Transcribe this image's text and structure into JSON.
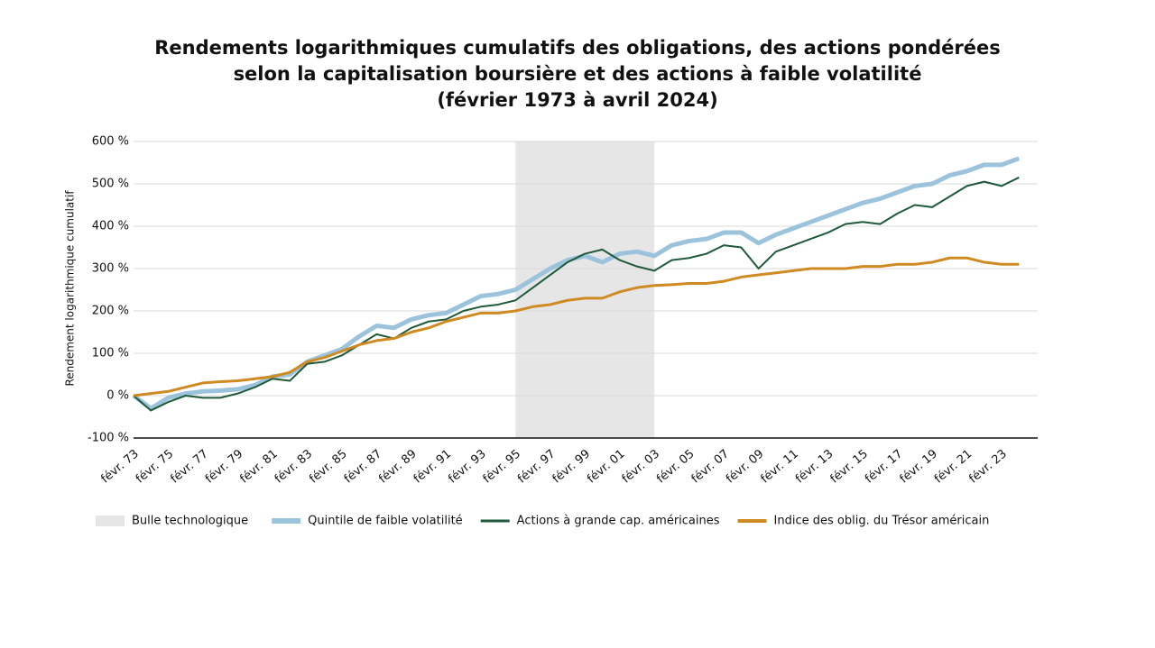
{
  "chart_data": {
    "type": "line",
    "title": [
      "Rendements logarithmiques cumulatifs des obligations, des actions pondérées",
      "selon la capitalisation boursière et des actions à faible volatilité",
      "(février 1973 à avril 2024)"
    ],
    "y_label": "Rendement logarithmique cumulatif",
    "categories": [
      "févr. 73",
      null,
      "févr. 75",
      null,
      "févr. 77",
      null,
      "févr. 79",
      null,
      "févr. 81",
      null,
      "févr. 83",
      null,
      "févr. 85",
      null,
      "févr. 87",
      null,
      "févr. 89",
      null,
      "févr. 91",
      null,
      "févr. 93",
      null,
      "févr. 95",
      null,
      "févr. 97",
      null,
      "févr. 99",
      null,
      "févr. 01",
      null,
      "févr. 03",
      null,
      "févr. 05",
      null,
      "févr. 07",
      null,
      "févr. 09",
      null,
      "févr. 11",
      null,
      "févr. 13",
      null,
      "févr. 15",
      null,
      "févr. 17",
      null,
      "févr. 19",
      null,
      "févr. 21",
      null,
      "févr. 23",
      null
    ],
    "bands": [
      {
        "name": "Bulle technologique",
        "color": "#e6e6e6",
        "start": "févr. 95",
        "end": "févr. 03"
      }
    ],
    "series": [
      {
        "name": "Quintile de faible volatilité",
        "color": "#9cc3dc",
        "width": 5,
        "values": [
          0,
          -30,
          -5,
          5,
          10,
          12,
          15,
          25,
          45,
          50,
          80,
          95,
          110,
          140,
          165,
          160,
          180,
          190,
          195,
          215,
          235,
          240,
          250,
          275,
          300,
          320,
          330,
          315,
          335,
          340,
          330,
          355,
          365,
          370,
          385,
          385,
          360,
          380,
          395,
          410,
          425,
          440,
          455,
          465,
          480,
          495,
          500,
          520,
          530,
          545,
          545,
          560
        ]
      },
      {
        "name": "Actions à grande cap. américaines",
        "color": "#1f5a3a",
        "width": 2,
        "values": [
          0,
          -35,
          -15,
          0,
          -5,
          -5,
          5,
          20,
          40,
          35,
          75,
          80,
          95,
          120,
          145,
          135,
          160,
          175,
          180,
          200,
          210,
          215,
          225,
          255,
          285,
          315,
          335,
          345,
          320,
          305,
          295,
          320,
          325,
          335,
          355,
          350,
          300,
          340,
          355,
          370,
          385,
          405,
          410,
          405,
          430,
          450,
          445,
          470,
          495,
          505,
          495,
          515
        ]
      },
      {
        "name": "Indice des oblig. du Trésor américain",
        "color": "#d08a22",
        "width": 3,
        "values": [
          0,
          5,
          10,
          20,
          30,
          33,
          35,
          40,
          45,
          55,
          80,
          90,
          105,
          120,
          130,
          135,
          150,
          160,
          175,
          185,
          195,
          195,
          200,
          210,
          215,
          225,
          230,
          230,
          245,
          255,
          260,
          262,
          265,
          265,
          270,
          280,
          285,
          290,
          295,
          300,
          300,
          300,
          305,
          305,
          310,
          310,
          315,
          325,
          325,
          315,
          310,
          310
        ]
      }
    ],
    "ylim": [
      -100,
      600
    ],
    "yticks": [
      {
        "value": -100,
        "label": "-100 %"
      },
      {
        "value": 0,
        "label": "0 %"
      },
      {
        "value": 100,
        "label": "100 %"
      },
      {
        "value": 200,
        "label": "200 %"
      },
      {
        "value": 300,
        "label": "300 %"
      },
      {
        "value": 400,
        "label": "400 %"
      },
      {
        "value": 500,
        "label": "500 %"
      },
      {
        "value": 600,
        "label": "600 %"
      }
    ],
    "grid": true
  }
}
